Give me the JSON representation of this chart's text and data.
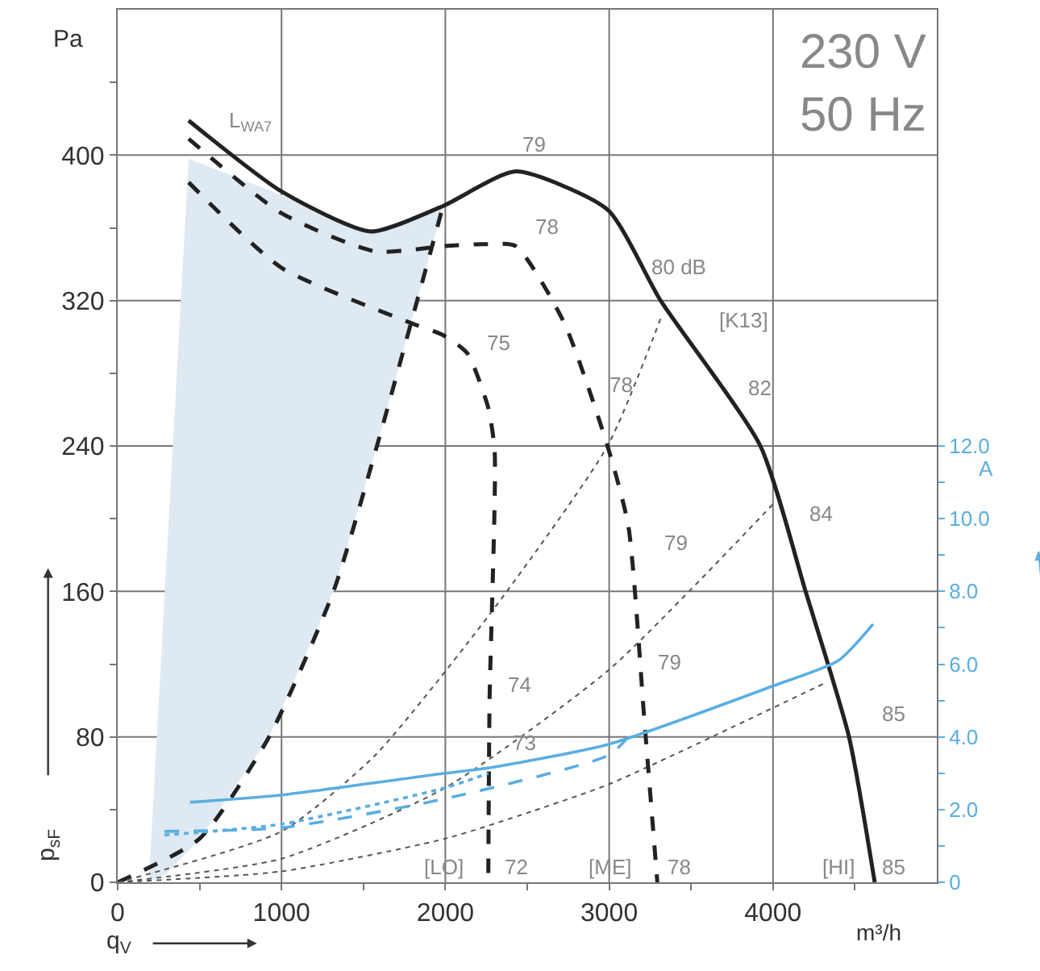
{
  "chart_data": {
    "type": "line",
    "xlabel": "m³/h",
    "ylabel": "Pa",
    "y2label": "A",
    "xlim": [
      0,
      5000
    ],
    "ylim": [
      0,
      480
    ],
    "y2lim": [
      0,
      24
    ],
    "xticks": [
      0,
      {
        "value": 500,
        "label": null
      },
      1000,
      {
        "value": 1500,
        "label": null
      },
      2000,
      {
        "value": 2500,
        "label": null
      },
      3000,
      {
        "value": 3500,
        "label": null
      },
      4000,
      {
        "value": 4500,
        "label": null
      }
    ],
    "yticks": [
      0,
      {
        "value": 40,
        "label": null
      },
      80,
      {
        "value": 120,
        "label": null
      },
      160,
      {
        "value": 200,
        "label": null
      },
      240,
      {
        "value": 280,
        "label": null
      },
      320,
      {
        "value": 360,
        "label": null
      },
      400,
      {
        "value": 440,
        "label": null
      }
    ],
    "y2ticks": [
      0,
      {
        "value": 1,
        "label": null
      },
      {
        "value": 2,
        "label": "2.0"
      },
      {
        "value": 3,
        "label": null
      },
      {
        "value": 4,
        "label": "4.0"
      },
      {
        "value": 5,
        "label": null
      },
      {
        "value": 6,
        "label": "6.0"
      },
      {
        "value": 7,
        "label": null
      },
      {
        "value": 8,
        "label": "8.0"
      },
      {
        "value": 9,
        "label": null
      },
      {
        "value": 10,
        "label": "10.0"
      },
      {
        "value": 11,
        "label": null
      },
      {
        "value": 12,
        "label": "12.0"
      }
    ],
    "grid": true,
    "series": [
      {
        "type": "area",
        "color": "#dfe9f1",
        "x": [
          190,
          433,
          1000,
          1544,
          1986,
          1573,
          1317,
          924,
          500,
          300
        ],
        "values": [
          0,
          398,
          378,
          358,
          372,
          237,
          160,
          80,
          24,
          5
        ]
      },
      {
        "color": "#222222",
        "line_style": "dashed",
        "x": [
          0,
          500,
          924,
          1317,
          1573,
          1986
        ],
        "values": [
          0,
          24,
          80,
          160,
          237,
          372
        ]
      },
      {
        "color": "#555555",
        "line_style": "dotted",
        "x": [
          0,
          1000,
          1573,
          2301,
          2990,
          3314
        ],
        "values": [
          0,
          28,
          70,
          151,
          240,
          310
        ]
      },
      {
        "color": "#555555",
        "line_style": "dotted",
        "x": [
          0,
          1000,
          2000,
          3000,
          4000
        ],
        "values": [
          0,
          13,
          52,
          117,
          208
        ]
      },
      {
        "color": "#555555",
        "line_style": "dotted",
        "x": [
          0,
          1000,
          2000,
          2527,
          3000,
          4326
        ],
        "values": [
          0,
          6,
          24,
          39,
          54,
          110
        ]
      },
      {
        "color": "#222222",
        "line_style": "solid",
        "x": [
          433,
          1000,
          1544,
          1986,
          2429,
          2990,
          3314,
          3923,
          4199,
          4464,
          4621
        ],
        "values": [
          419,
          380,
          358,
          372,
          391,
          370,
          320,
          240,
          160,
          80,
          0
        ]
      },
      {
        "color": "#222222",
        "line_style": "dashed",
        "x": [
          433,
          1000,
          1573,
          2000,
          2232,
          2429,
          2724,
          2990,
          3117,
          3215,
          3294
        ],
        "values": [
          409,
          368,
          347,
          350,
          351,
          350,
          308,
          240,
          196,
          89,
          0
        ]
      },
      {
        "color": "#222222",
        "line_style": "dashed",
        "x": [
          433,
          1000,
          1809,
          1986,
          2134,
          2262,
          2301,
          2270,
          2262
        ],
        "values": [
          385,
          338,
          307,
          301,
          291,
          261,
          237,
          100,
          0
        ]
      },
      {
        "color": "#5aaee0",
        "line_style": "solid",
        "axis": "y2",
        "x": [
          442,
          1000,
          2000,
          2270,
          3000,
          4000,
          4400,
          4611
        ],
        "values": [
          2.2,
          2.4,
          3.0,
          3.15,
          3.8,
          5.4,
          6.1,
          7.1
        ]
      },
      {
        "color": "#5aaee0",
        "line_style": "dashed",
        "axis": "y2",
        "x": [
          285,
          1000,
          2000,
          3000,
          3117
        ],
        "values": [
          1.4,
          1.5,
          2.3,
          3.5,
          4.0
        ]
      },
      {
        "color": "#5aaee0",
        "line_style": "dotted",
        "axis": "y2",
        "x": [
          285,
          1000,
          2000,
          2262
        ],
        "values": [
          1.3,
          1.6,
          2.6,
          3.0
        ]
      }
    ],
    "annotations": [
      "230 V\n50 Hz",
      "q$_{V}$",
      "p$_{sF}$",
      "L$_{WA7}$",
      "79",
      "78",
      "80 dB",
      "75",
      "78",
      "82",
      "[K13]",
      "79",
      "84",
      "74",
      "79",
      "73",
      "85",
      "72",
      "78",
      "85",
      "[LO]",
      "[ME]",
      "[HI]"
    ]
  }
}
